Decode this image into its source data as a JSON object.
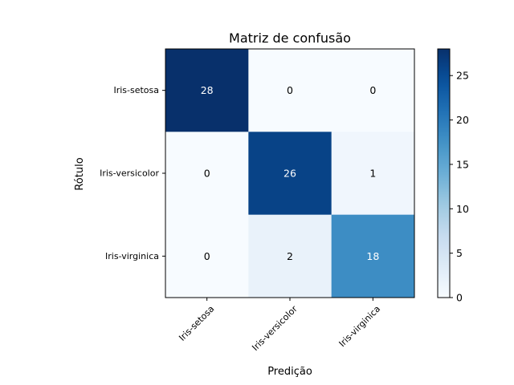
{
  "chart_data": {
    "type": "heatmap",
    "title": "Matriz de confusão",
    "xlabel": "Predição",
    "ylabel": "Rótulo",
    "x_categories": [
      "Iris-setosa",
      "Iris-versicolor",
      "Iris-virginica"
    ],
    "y_categories": [
      "Iris-setosa",
      "Iris-versicolor",
      "Iris-virginica"
    ],
    "values": [
      [
        28,
        0,
        0
      ],
      [
        0,
        26,
        1
      ],
      [
        0,
        2,
        18
      ]
    ],
    "colormap": "Blues",
    "value_range": [
      0,
      28
    ],
    "colorbar_ticks": [
      0,
      5,
      10,
      15,
      20,
      25
    ],
    "x_tick_rotation_deg": 45,
    "grid": false
  }
}
